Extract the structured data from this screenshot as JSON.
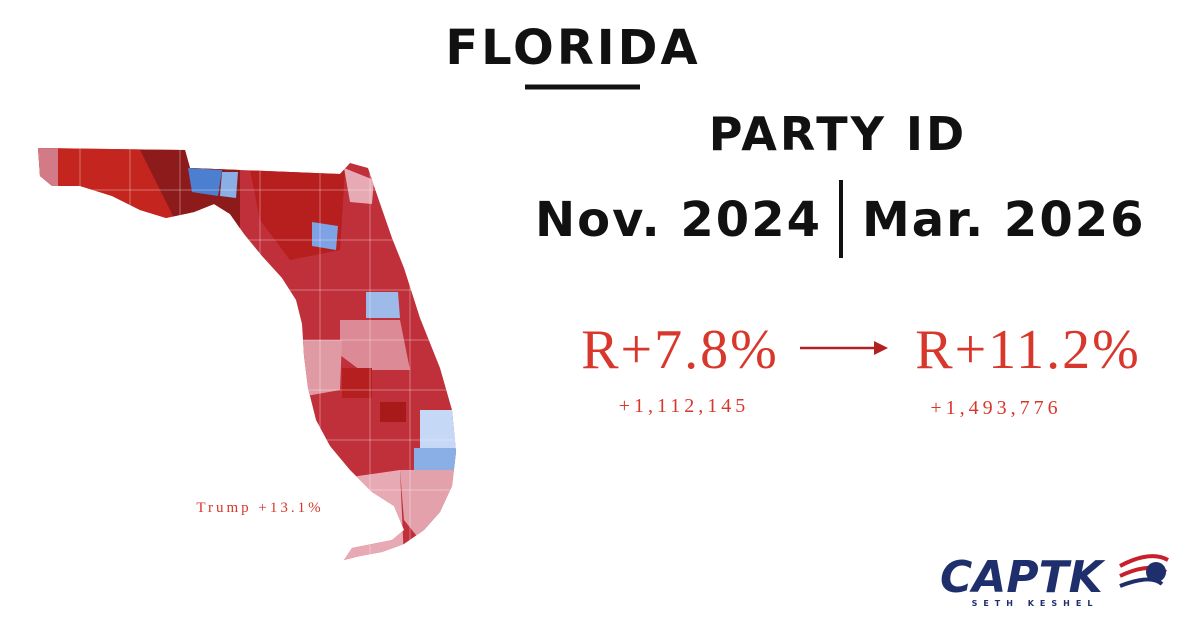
{
  "header": {
    "title": "FLORIDA",
    "subtitle": "PARTY ID",
    "date_from": "Nov. 2024",
    "date_to": "Mar. 2026"
  },
  "from": {
    "margin": "R+7.8%",
    "count": "+1,112,145"
  },
  "to": {
    "margin": "R+11.2%",
    "count": "+1,493,776"
  },
  "map": {
    "annotation": "Trump +13.1%"
  },
  "logo": {
    "name": "CAPTK",
    "tagline": "SETH KESHEL"
  }
}
